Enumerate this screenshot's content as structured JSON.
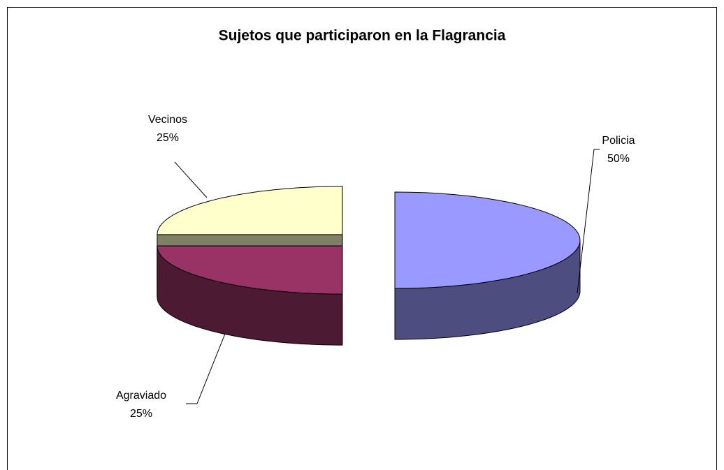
{
  "chart_data": {
    "type": "pie3d",
    "title": "Sujetos que participaron en la Flagrancia",
    "categories": [
      "Policia",
      "Agraviado",
      "Vecinos"
    ],
    "values": [
      50,
      25,
      25
    ],
    "value_labels": [
      "50%",
      "25%",
      "25%"
    ],
    "colors": [
      "#9999ff",
      "#993366",
      "#ffffcc"
    ],
    "side_colors": [
      "#4d4d80",
      "#4d1a33",
      "#808066"
    ]
  }
}
